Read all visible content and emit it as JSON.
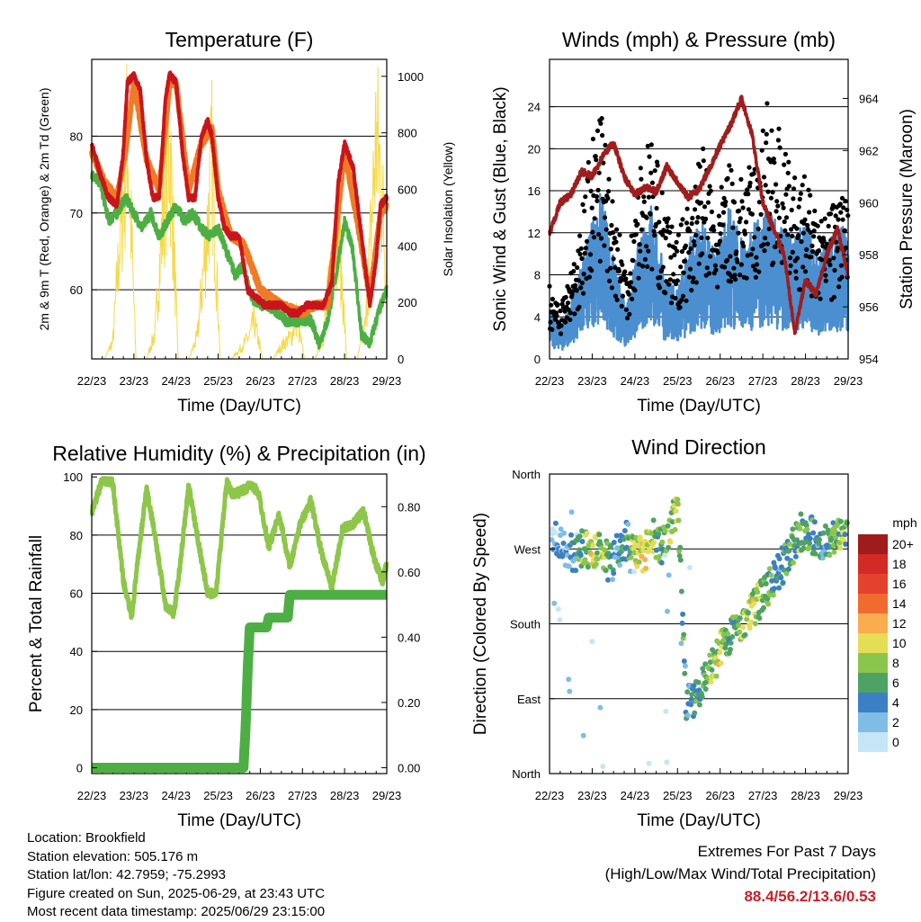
{
  "colors": {
    "temp2m": "#c8151b",
    "temp9m": "#f07b24",
    "dewpoint": "#4daf43",
    "solar": "#f5d94a",
    "wind": "#4b8fd0",
    "gust": "#000000",
    "pressure": "#a11d1d",
    "rh": "#8ec64a",
    "precip": "#4daf43",
    "extremes": "#c8202a"
  },
  "info": {
    "location": "Location: Brookfield",
    "elevation": "Station elevation: 505.176 m",
    "latlon": "Station lat/lon: 42.7959; -75.2993",
    "created": "Figure created on Sun, 2025-06-29, at 23:43 UTC",
    "recent": "Most recent data timestamp: 2025/06/29 23:15:00"
  },
  "extremes": {
    "line1": "Extremes For Past 7 Days",
    "line2": "(High/Low/Max Wind/Total Precipitation)",
    "values": "88.4/56.2/13.6/0.53"
  },
  "legend": {
    "title": "mph",
    "labels": [
      "20+",
      "18",
      "16",
      "14",
      "12",
      "10",
      "8",
      "6",
      "4",
      "2",
      "0"
    ],
    "colors": [
      "#a01b1c",
      "#d42a25",
      "#e3422c",
      "#f26b2e",
      "#f9ad4e",
      "#e5dd55",
      "#8ac64c",
      "#4ea364",
      "#3d7fc4",
      "#7fbde6",
      "#c5e6f7"
    ]
  },
  "chart_data": [
    {
      "type": "line",
      "title": "Temperature (F)",
      "xlabel": "Time (Day/UTC)",
      "ylabel": "2m & 9m T (Red, Orange) & 2m Td (Green)",
      "y2label": "Solar Insolation (Yellow)",
      "x_ticks": [
        "22/23",
        "23/23",
        "24/23",
        "25/23",
        "26/23",
        "27/23",
        "28/23",
        "29/23"
      ],
      "ylim": [
        51,
        90
      ],
      "y_ticks": [
        60,
        70,
        80
      ],
      "y2lim": [
        0,
        1060
      ],
      "y2_ticks": [
        0,
        200,
        400,
        600,
        800,
        1000
      ],
      "grid": "horizontal",
      "series": [
        {
          "name": "2m T",
          "color_key": "temp2m",
          "x": [
            0,
            0.2,
            0.4,
            0.6,
            0.75,
            0.85,
            1.0,
            1.15,
            1.3,
            1.45,
            1.6,
            1.75,
            1.85,
            2.0,
            2.15,
            2.3,
            2.45,
            2.6,
            2.75,
            2.85,
            3.0,
            3.15,
            3.3,
            3.5,
            3.7,
            3.9,
            4.1,
            4.3,
            4.5,
            4.7,
            4.9,
            5.1,
            5.3,
            5.5,
            5.7,
            5.85,
            6.0,
            6.2,
            6.4,
            6.6,
            6.75,
            6.85,
            7.0
          ],
          "y": [
            79,
            75,
            72,
            71,
            78,
            87,
            88,
            86,
            77,
            72,
            72,
            85,
            88,
            87,
            78,
            72,
            72,
            80,
            82,
            80,
            72,
            68,
            67,
            67,
            60,
            59,
            58,
            58,
            58,
            57,
            57,
            58,
            58,
            58,
            61,
            74,
            79,
            76,
            67,
            58,
            64,
            71,
            72
          ]
        },
        {
          "name": "9m T",
          "color_key": "temp9m",
          "x": [
            0,
            0.3,
            0.6,
            0.8,
            1.0,
            1.3,
            1.6,
            1.85,
            2.0,
            2.3,
            2.6,
            2.85,
            3.0,
            3.3,
            3.6,
            4.0,
            4.5,
            5.0,
            5.3,
            5.6,
            5.9,
            6.0,
            6.3,
            6.6,
            6.85,
            7.0
          ],
          "y": [
            78,
            74,
            72,
            78,
            87,
            77,
            73,
            87,
            87,
            73,
            79,
            81,
            73,
            67,
            66,
            60,
            58,
            57,
            58,
            58,
            73,
            78,
            69,
            59,
            70,
            71
          ]
        },
        {
          "name": "2m Td",
          "color_key": "dewpoint",
          "x": [
            0,
            0.2,
            0.4,
            0.6,
            0.8,
            1.0,
            1.2,
            1.4,
            1.6,
            1.8,
            2.0,
            2.2,
            2.4,
            2.6,
            2.8,
            3.0,
            3.2,
            3.4,
            3.6,
            3.8,
            4.0,
            4.2,
            4.4,
            4.6,
            4.8,
            5.0,
            5.2,
            5.4,
            5.6,
            5.8,
            6.0,
            6.2,
            6.4,
            6.6,
            6.8,
            7.0
          ],
          "y": [
            75,
            74,
            69,
            70,
            72,
            70,
            68,
            70,
            67,
            69,
            71,
            69,
            70,
            68,
            67,
            68,
            65,
            62,
            63,
            59,
            58,
            58,
            57,
            56,
            56,
            56,
            56,
            53,
            56,
            62,
            69,
            65,
            54,
            53,
            57,
            60
          ]
        },
        {
          "name": "Solar",
          "color_key": "solar",
          "axis": "y2",
          "x": [
            0,
            0.3,
            0.5,
            0.75,
            0.85,
            1.05,
            1.3,
            1.5,
            1.75,
            1.85,
            2.05,
            2.3,
            2.5,
            2.75,
            2.85,
            3.05,
            3.3,
            3.5,
            3.75,
            3.85,
            4.05,
            4.3,
            4.5,
            4.75,
            4.85,
            5.05,
            5.3,
            5.5,
            5.75,
            5.85,
            6.05,
            6.3,
            6.5,
            6.75,
            6.85,
            7.0
          ],
          "y": [
            0,
            0,
            80,
            780,
            1050,
            0,
            0,
            120,
            860,
            1010,
            0,
            0,
            100,
            620,
            920,
            0,
            0,
            40,
            110,
            180,
            0,
            0,
            60,
            110,
            190,
            0,
            0,
            110,
            560,
            640,
            0,
            0,
            160,
            1040,
            880,
            380
          ]
        }
      ]
    },
    {
      "type": "scatter",
      "title": "Winds (mph) & Pressure (mb)",
      "xlabel": "Time (Day/UTC)",
      "ylabel": "Sonic Wind & Gust (Blue, Black)",
      "y2label": "Station Pressure (Maroon)",
      "x_ticks": [
        "22/23",
        "23/23",
        "24/23",
        "25/23",
        "26/23",
        "27/23",
        "28/23",
        "29/23"
      ],
      "ylim": [
        0,
        28.5
      ],
      "y_ticks": [
        0,
        4,
        8,
        12,
        16,
        20,
        24
      ],
      "y2lim": [
        954,
        965.5
      ],
      "y2_ticks": [
        954,
        956,
        958,
        960,
        962,
        964
      ],
      "grid": "horizontal",
      "series": [
        {
          "name": "Pressure",
          "color_key": "pressure",
          "axis": "y2",
          "x": [
            0,
            0.25,
            0.5,
            0.75,
            1.0,
            1.25,
            1.5,
            1.75,
            2.0,
            2.25,
            2.5,
            2.75,
            3.0,
            3.25,
            3.5,
            3.75,
            4.0,
            4.25,
            4.5,
            4.75,
            5.0,
            5.25,
            5.5,
            5.75,
            6.0,
            6.25,
            6.5,
            6.75,
            7.0
          ],
          "y": [
            958.8,
            960.0,
            960.3,
            961.2,
            961.0,
            961.8,
            962.3,
            961.0,
            960.3,
            960.6,
            960.4,
            961.4,
            960.8,
            960.2,
            960.5,
            961.3,
            962.2,
            963.0,
            964.0,
            962.6,
            960.0,
            959.0,
            958.0,
            955.0,
            957.0,
            956.5,
            958.0,
            959.0,
            957.2
          ]
        },
        {
          "name": "Wind",
          "color_key": "wind",
          "x": [
            0,
            0.3,
            0.6,
            0.9,
            1.2,
            1.5,
            1.8,
            2.1,
            2.4,
            2.7,
            3.0,
            3.3,
            3.6,
            3.9,
            4.2,
            4.5,
            4.8,
            5.1,
            5.4,
            5.7,
            6.0,
            6.3,
            6.6,
            6.9,
            7.0
          ],
          "y": [
            3,
            2,
            4,
            7,
            10,
            6,
            3,
            7,
            9,
            5,
            4,
            7,
            8,
            6,
            9,
            7,
            8,
            9,
            8,
            7,
            8,
            6,
            7,
            8,
            7
          ]
        },
        {
          "name": "Gust",
          "color_key": "gust",
          "x": [
            0,
            0.3,
            0.6,
            0.9,
            1.2,
            1.5,
            1.8,
            2.1,
            2.4,
            2.7,
            3.0,
            3.3,
            3.6,
            3.9,
            4.2,
            4.5,
            4.8,
            5.1,
            5.4,
            5.7,
            6.0,
            6.3,
            6.6,
            6.9,
            7.0
          ],
          "y": [
            5,
            4,
            7,
            13,
            17,
            11,
            6,
            13,
            15,
            10,
            8,
            11,
            14,
            10,
            13,
            12,
            13,
            17,
            15,
            12,
            12,
            9,
            10,
            12,
            10
          ]
        }
      ]
    },
    {
      "type": "line",
      "title": "Relative Humidity (%) & Precipitation (in)",
      "xlabel": "Time (Day/UTC)",
      "ylabel": "Percent & Total Rainfall",
      "x_ticks": [
        "22/23",
        "23/23",
        "24/23",
        "25/23",
        "26/23",
        "27/23",
        "28/23",
        "29/23"
      ],
      "ylim": [
        -2,
        101
      ],
      "y_ticks": [
        0,
        20,
        40,
        60,
        80,
        100
      ],
      "y2lim": [
        -0.018,
        0.9
      ],
      "y2_ticks": [
        "0.00",
        "0.20",
        "0.40",
        "0.60",
        "0.80"
      ],
      "grid": "horizontal",
      "series": [
        {
          "name": "RH",
          "color_key": "rh",
          "x": [
            0,
            0.25,
            0.5,
            0.75,
            0.95,
            1.1,
            1.3,
            1.5,
            1.75,
            1.95,
            2.1,
            2.3,
            2.55,
            2.75,
            2.95,
            3.2,
            3.35,
            3.55,
            3.75,
            3.95,
            4.2,
            4.45,
            4.7,
            4.95,
            5.2,
            5.45,
            5.7,
            5.95,
            6.2,
            6.45,
            6.7,
            6.9,
            7.0
          ],
          "y": [
            88,
            99,
            98,
            64,
            52,
            72,
            96,
            80,
            56,
            53,
            70,
            97,
            76,
            60,
            60,
            98,
            94,
            95,
            97,
            95,
            76,
            87,
            69,
            84,
            92,
            74,
            62,
            82,
            84,
            88,
            72,
            64,
            70
          ]
        },
        {
          "name": "Precipitation",
          "color_key": "precip",
          "axis": "y2",
          "x": [
            0,
            3.5,
            3.6,
            3.65,
            3.7,
            3.75,
            4.0,
            4.15,
            4.2,
            4.5,
            4.65,
            4.7,
            7.0
          ],
          "y": [
            0,
            0,
            0,
            0.12,
            0.3,
            0.43,
            0.43,
            0.43,
            0.46,
            0.46,
            0.46,
            0.53,
            0.53
          ]
        }
      ]
    },
    {
      "type": "scatter",
      "title": "Wind Direction",
      "xlabel": "Time (Day/UTC)",
      "ylabel": "Direction (Colored By Speed)",
      "x_ticks": [
        "22/23",
        "23/23",
        "24/23",
        "25/23",
        "26/23",
        "27/23",
        "28/23",
        "29/23"
      ],
      "y_ticks": [
        "North",
        "East",
        "South",
        "West",
        "North"
      ],
      "ylim": [
        0,
        360
      ],
      "grid": "horizontal",
      "series": [
        {
          "name": "Direction",
          "x": [
            0.2,
            0.4,
            0.6,
            0.8,
            1.0,
            1.2,
            1.4,
            1.6,
            1.8,
            2.0,
            2.2,
            2.4,
            2.6,
            2.8,
            3.0,
            3.2,
            3.4,
            3.6,
            3.8,
            4.0,
            4.2,
            4.4,
            4.6,
            4.8,
            5.0,
            5.2,
            5.4,
            5.6,
            5.8,
            6.0,
            6.2,
            6.4,
            6.6,
            6.8
          ],
          "y": [
            285,
            270,
            265,
            272,
            268,
            275,
            250,
            270,
            280,
            272,
            260,
            285,
            275,
            280,
            330,
            85,
            92,
            105,
            125,
            150,
            165,
            178,
            188,
            200,
            212,
            228,
            245,
            262,
            285,
            295,
            285,
            275,
            278,
            290
          ],
          "speeds": [
            2,
            3,
            5,
            7,
            10,
            8,
            5,
            3,
            6,
            9,
            11,
            8,
            6,
            7,
            9,
            3,
            5,
            7,
            8,
            9,
            6,
            7,
            8,
            9,
            8,
            6,
            5,
            6,
            7,
            6,
            5,
            4,
            6,
            7
          ]
        }
      ]
    }
  ]
}
